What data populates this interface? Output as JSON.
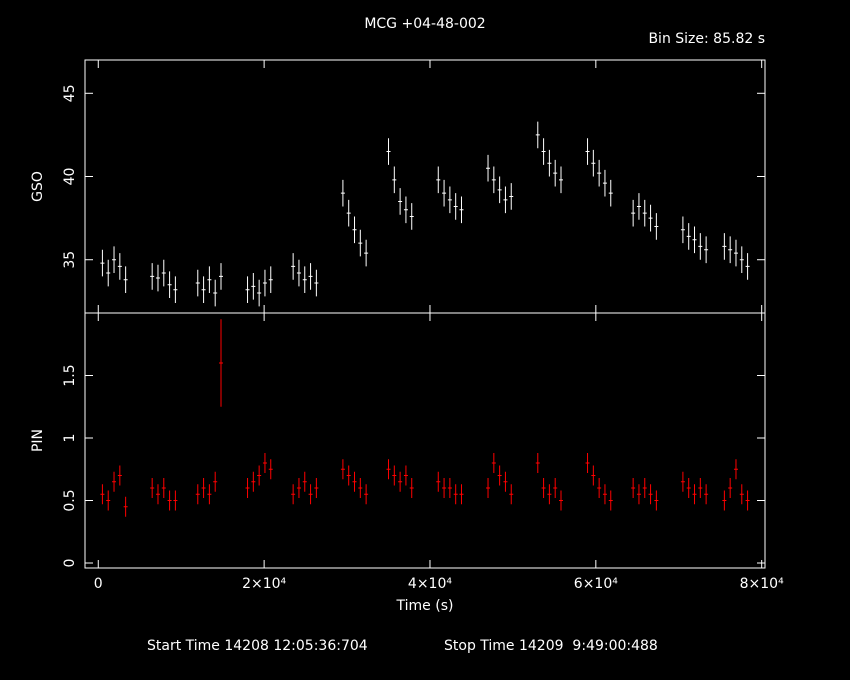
{
  "title": "MCG +04-48-002",
  "bin_size": "Bin Size: 85.82 s",
  "footer": {
    "start": "Start Time 14208 12:05:36:704",
    "stop": "Stop Time 14209  9:49:00:488"
  },
  "chart_data": [
    {
      "type": "errorbar",
      "ylabel": "GSO",
      "color": "#ffffff",
      "xlim": [
        -1600,
        80400
      ],
      "xticks": [
        0,
        20000,
        40000,
        60000,
        80000
      ],
      "ylim": [
        31.8,
        47
      ],
      "yticks": [
        35,
        40,
        45
      ],
      "x": [
        500,
        1200,
        1900,
        2600,
        3300,
        6500,
        7200,
        7900,
        8600,
        9300,
        12000,
        12700,
        13400,
        14100,
        14800,
        18000,
        18700,
        19400,
        20100,
        20800,
        23500,
        24200,
        24900,
        25600,
        26300,
        29500,
        30200,
        30900,
        31600,
        32300,
        35000,
        35700,
        36400,
        37100,
        37800,
        41000,
        41700,
        42400,
        43100,
        43800,
        47000,
        47700,
        48400,
        49100,
        49800,
        53000,
        53700,
        54400,
        55100,
        55800,
        59000,
        59700,
        60400,
        61100,
        61800,
        64500,
        65200,
        65900,
        66600,
        67300,
        70500,
        71200,
        71900,
        72600,
        73300,
        75500,
        76200,
        76900,
        77600,
        78300
      ],
      "values": [
        34.8,
        34.2,
        35.0,
        34.6,
        33.8,
        34.0,
        33.9,
        34.2,
        33.5,
        33.2,
        33.6,
        33.2,
        33.8,
        33.0,
        34.0,
        33.2,
        33.4,
        33.0,
        33.6,
        33.8,
        34.6,
        34.2,
        33.8,
        34.0,
        33.6,
        39.0,
        37.8,
        36.8,
        36.0,
        35.4,
        41.5,
        39.8,
        38.5,
        38.0,
        37.6,
        39.8,
        39.0,
        38.6,
        38.2,
        38.0,
        40.5,
        39.8,
        39.2,
        38.6,
        38.8,
        42.5,
        41.5,
        40.8,
        40.2,
        39.8,
        41.5,
        40.8,
        40.2,
        39.6,
        39.0,
        37.8,
        38.2,
        37.8,
        37.5,
        37.0,
        36.8,
        36.4,
        36.2,
        35.8,
        35.6,
        35.8,
        35.6,
        35.4,
        35.0,
        34.6
      ],
      "errors": [
        0.8,
        0.8,
        0.8,
        0.8,
        0.8,
        0.8,
        0.8,
        0.8,
        0.8,
        0.8,
        0.8,
        0.8,
        0.8,
        0.8,
        0.8,
        0.8,
        0.8,
        0.8,
        0.8,
        0.8,
        0.8,
        0.8,
        0.8,
        0.8,
        0.8,
        0.8,
        0.8,
        0.8,
        0.8,
        0.8,
        0.8,
        0.8,
        0.8,
        0.8,
        0.8,
        0.8,
        0.8,
        0.8,
        0.8,
        0.8,
        0.8,
        0.8,
        0.8,
        0.8,
        0.8,
        0.8,
        0.8,
        0.8,
        0.8,
        0.8,
        0.8,
        0.8,
        0.8,
        0.8,
        0.8,
        0.8,
        0.8,
        0.8,
        0.8,
        0.8,
        0.8,
        0.8,
        0.8,
        0.8,
        0.8,
        0.8,
        0.8,
        0.8,
        0.8,
        0.8
      ]
    },
    {
      "type": "errorbar",
      "ylabel": "PIN",
      "xlabel": "Time (s)",
      "color": "#ff0000",
      "xlim": [
        -1600,
        80400
      ],
      "xticks": [
        0,
        {
          "value": 20000,
          "label": "2×10⁴"
        },
        {
          "value": 40000,
          "label": "4×10⁴"
        },
        {
          "value": 60000,
          "label": "6×10⁴"
        },
        {
          "value": 80000,
          "label": "8×10⁴"
        }
      ],
      "ylim": [
        -0.04,
        2.0
      ],
      "yticks": [
        0,
        0.5,
        1,
        1.5
      ],
      "x": [
        500,
        1200,
        1900,
        2600,
        3300,
        6500,
        7200,
        7900,
        8600,
        9300,
        12000,
        12700,
        13400,
        14100,
        14800,
        18000,
        18700,
        19400,
        20100,
        20800,
        23500,
        24200,
        24900,
        25600,
        26300,
        29500,
        30200,
        30900,
        31600,
        32300,
        35000,
        35700,
        36400,
        37100,
        37800,
        41000,
        41700,
        42400,
        43100,
        43800,
        47000,
        47700,
        48400,
        49100,
        49800,
        53000,
        53700,
        54400,
        55100,
        55800,
        59000,
        59700,
        60400,
        61100,
        61800,
        64500,
        65200,
        65900,
        66600,
        67300,
        70500,
        71200,
        71900,
        72600,
        73300,
        75500,
        76200,
        76900,
        77600,
        78300
      ],
      "values": [
        0.55,
        0.5,
        0.65,
        0.7,
        0.45,
        0.6,
        0.55,
        0.6,
        0.5,
        0.5,
        0.55,
        0.6,
        0.55,
        0.65,
        1.6,
        0.6,
        0.65,
        0.7,
        0.8,
        0.75,
        0.55,
        0.6,
        0.65,
        0.55,
        0.6,
        0.75,
        0.7,
        0.65,
        0.6,
        0.55,
        0.75,
        0.7,
        0.65,
        0.7,
        0.6,
        0.65,
        0.6,
        0.6,
        0.55,
        0.55,
        0.6,
        0.8,
        0.7,
        0.65,
        0.55,
        0.8,
        0.6,
        0.55,
        0.6,
        0.5,
        0.8,
        0.7,
        0.6,
        0.55,
        0.5,
        0.6,
        0.55,
        0.6,
        0.55,
        0.5,
        0.65,
        0.6,
        0.55,
        0.6,
        0.55,
        0.5,
        0.6,
        0.75,
        0.55,
        0.5
      ],
      "errors": [
        0.08,
        0.08,
        0.08,
        0.08,
        0.08,
        0.08,
        0.08,
        0.08,
        0.08,
        0.08,
        0.08,
        0.08,
        0.08,
        0.08,
        0.35,
        0.08,
        0.08,
        0.08,
        0.08,
        0.08,
        0.08,
        0.08,
        0.08,
        0.08,
        0.08,
        0.08,
        0.08,
        0.08,
        0.08,
        0.08,
        0.08,
        0.08,
        0.08,
        0.08,
        0.08,
        0.08,
        0.08,
        0.08,
        0.08,
        0.08,
        0.08,
        0.08,
        0.08,
        0.08,
        0.08,
        0.08,
        0.08,
        0.08,
        0.08,
        0.08,
        0.08,
        0.08,
        0.08,
        0.08,
        0.08,
        0.08,
        0.08,
        0.08,
        0.08,
        0.08,
        0.08,
        0.08,
        0.08,
        0.08,
        0.08,
        0.08,
        0.08,
        0.08,
        0.08,
        0.08
      ]
    }
  ]
}
